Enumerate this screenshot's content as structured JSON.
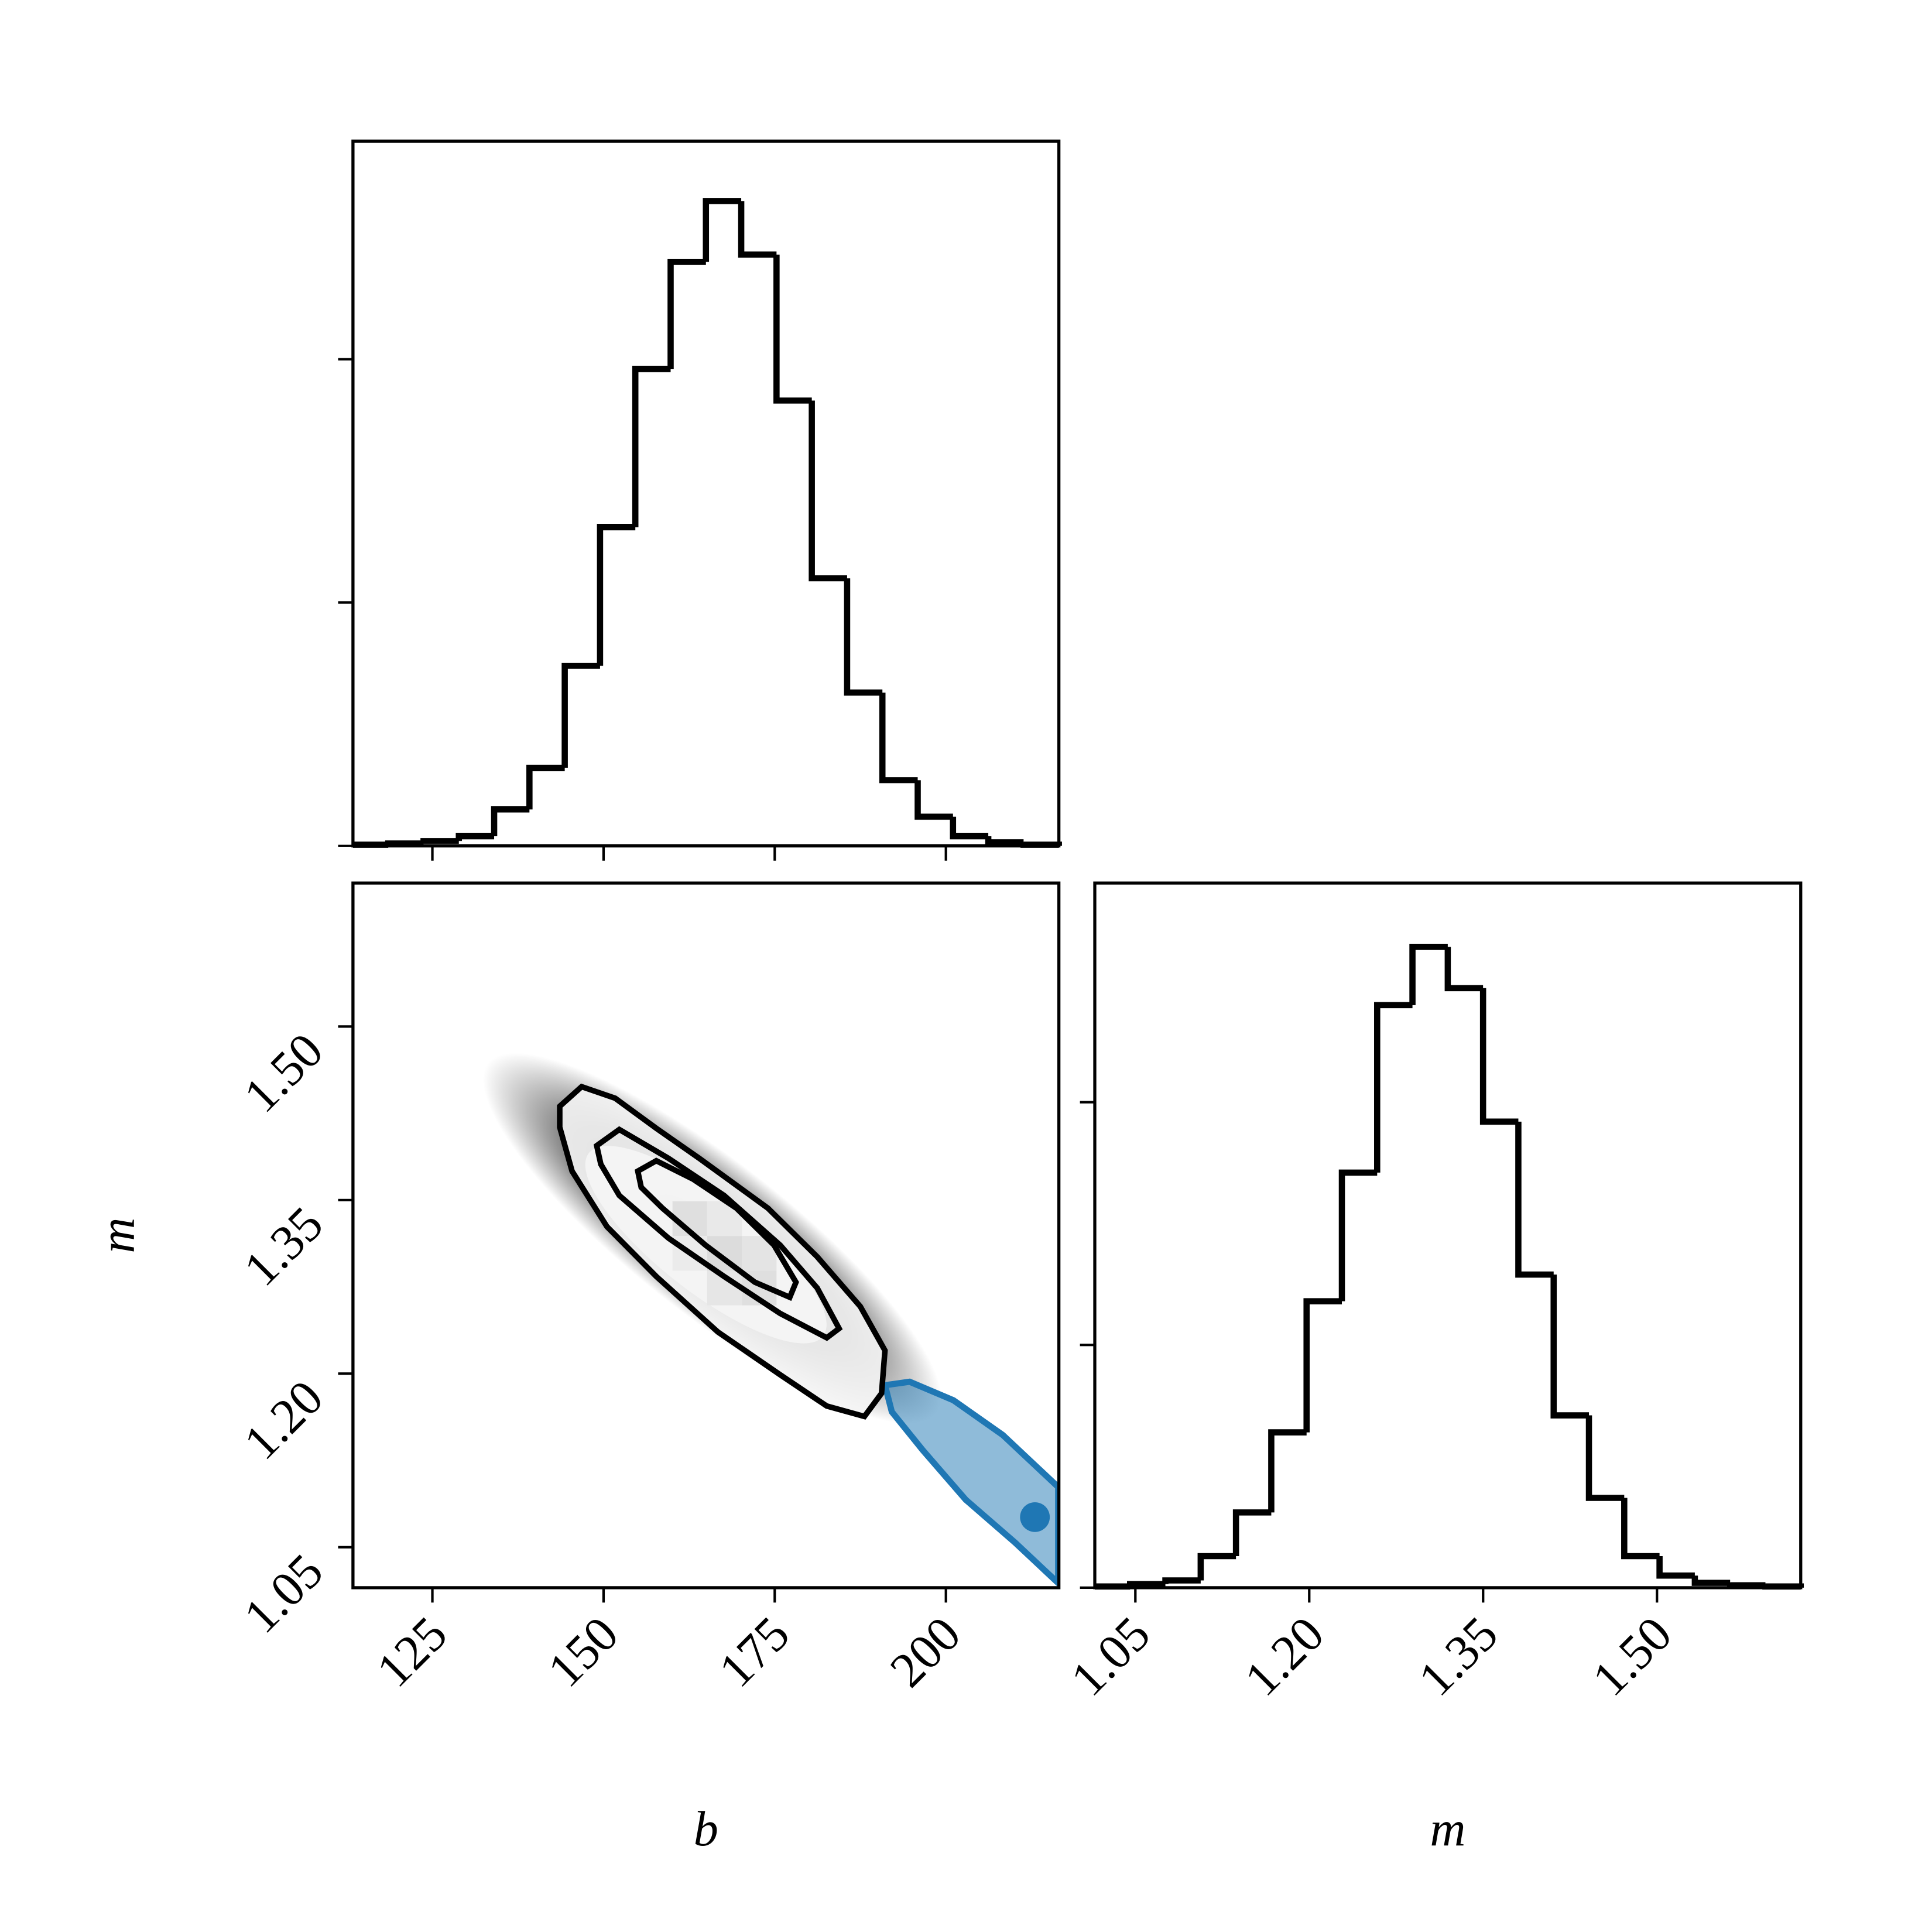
{
  "chart_data": [
    {
      "type": "histogram",
      "bins": [
        113.4,
        118.555,
        123.71,
        128.865,
        134.02,
        139.175,
        144.33,
        149.485,
        154.64,
        159.795,
        164.95,
        170.105,
        175.26,
        180.415,
        185.57,
        190.725,
        195.88,
        201.035,
        206.19,
        211.345,
        216.5
      ],
      "counts": [
        0.005,
        0.01,
        0.02,
        0.04,
        0.15,
        0.32,
        0.74,
        1.31,
        1.96,
        2.4,
        2.65,
        2.43,
        1.83,
        1.1,
        0.63,
        0.27,
        0.12,
        0.04,
        0.015,
        0.005
      ],
      "color": "#000000",
      "xlim": [
        113.4,
        216.5
      ],
      "xticks": [
        125,
        150,
        175,
        200
      ],
      "ylim": [
        0,
        2.896
      ],
      "yticks": [
        0,
        1,
        2
      ]
    },
    {
      "type": "corner2d",
      "xlabel": "b",
      "ylabel": "m",
      "xlim": [
        113.4,
        216.5
      ],
      "ylim": [
        1.015,
        1.624
      ],
      "xticks": [
        125,
        150,
        175,
        200
      ],
      "yticks": [
        {
          "value": 1.05,
          "label": "1.05"
        },
        {
          "value": 1.2,
          "label": "1.20"
        },
        {
          "value": 1.35,
          "label": "1.35"
        },
        {
          "value": 1.5,
          "label": "1.50"
        }
      ],
      "contours": [
        {
          "x": [
            143.6,
            146.8,
            151.7,
            157.7,
            164.0,
            174.0,
            181.2,
            187.5,
            191.1,
            190.6,
            188.1,
            182.6,
            175.8,
            166.7,
            157.7,
            150.5,
            145.4,
            143.6
          ],
          "y": [
            1.431,
            1.448,
            1.438,
            1.412,
            1.386,
            1.343,
            1.301,
            1.258,
            1.22,
            1.183,
            1.163,
            1.172,
            1.199,
            1.236,
            1.284,
            1.327,
            1.375,
            1.413
          ]
        },
        {
          "x": [
            149.0,
            152.3,
            159.5,
            167.6,
            175.8,
            181.2,
            184.4,
            182.6,
            175.8,
            167.6,
            159.5,
            152.3,
            149.6
          ],
          "y": [
            1.397,
            1.411,
            1.386,
            1.354,
            1.311,
            1.274,
            1.239,
            1.231,
            1.252,
            1.284,
            1.317,
            1.354,
            1.381
          ]
        },
        {
          "x": [
            155.0,
            157.7,
            163.1,
            169.4,
            174.9,
            178.1,
            177.2,
            172.1,
            164.9,
            158.6,
            155.5
          ],
          "y": [
            1.375,
            1.384,
            1.368,
            1.343,
            1.311,
            1.279,
            1.266,
            1.279,
            1.311,
            1.343,
            1.361
          ]
        }
      ],
      "truth_region": {
        "x": [
          191.1,
          194.7,
          201.1,
          208.3,
          216.4,
          216.4,
          210.1,
          202.9,
          196.6,
          192.1
        ],
        "y": [
          1.19,
          1.193,
          1.177,
          1.147,
          1.102,
          1.019,
          1.054,
          1.091,
          1.134,
          1.167
        ],
        "color": "#1f77b4"
      },
      "truth_point": {
        "x": 213.0,
        "y": 1.076,
        "color": "#1f77b4"
      }
    },
    {
      "type": "histogram",
      "xlabel": "m",
      "bins": [
        1.015,
        1.04545,
        1.0759,
        1.10635,
        1.1368,
        1.16725,
        1.1977,
        1.22815,
        1.2586,
        1.28905,
        1.3195,
        1.34995,
        1.3804,
        1.41085,
        1.4413,
        1.47175,
        1.5022,
        1.53265,
        1.5631,
        1.59355,
        1.624
      ],
      "counts": [
        0.005,
        0.015,
        0.03,
        0.13,
        0.31,
        0.64,
        1.18,
        1.71,
        2.4,
        2.64,
        2.47,
        1.92,
        1.29,
        0.71,
        0.37,
        0.13,
        0.05,
        0.02,
        0.01,
        0.005
      ],
      "color": "#000000",
      "xlim": [
        1.015,
        1.624
      ],
      "xticks": [
        {
          "value": 1.05,
          "label": "1.05"
        },
        {
          "value": 1.2,
          "label": "1.20"
        },
        {
          "value": 1.35,
          "label": "1.35"
        },
        {
          "value": 1.5,
          "label": "1.50"
        }
      ],
      "ylim": [
        0,
        2.903
      ],
      "yticks": [
        0,
        1,
        2
      ]
    }
  ]
}
